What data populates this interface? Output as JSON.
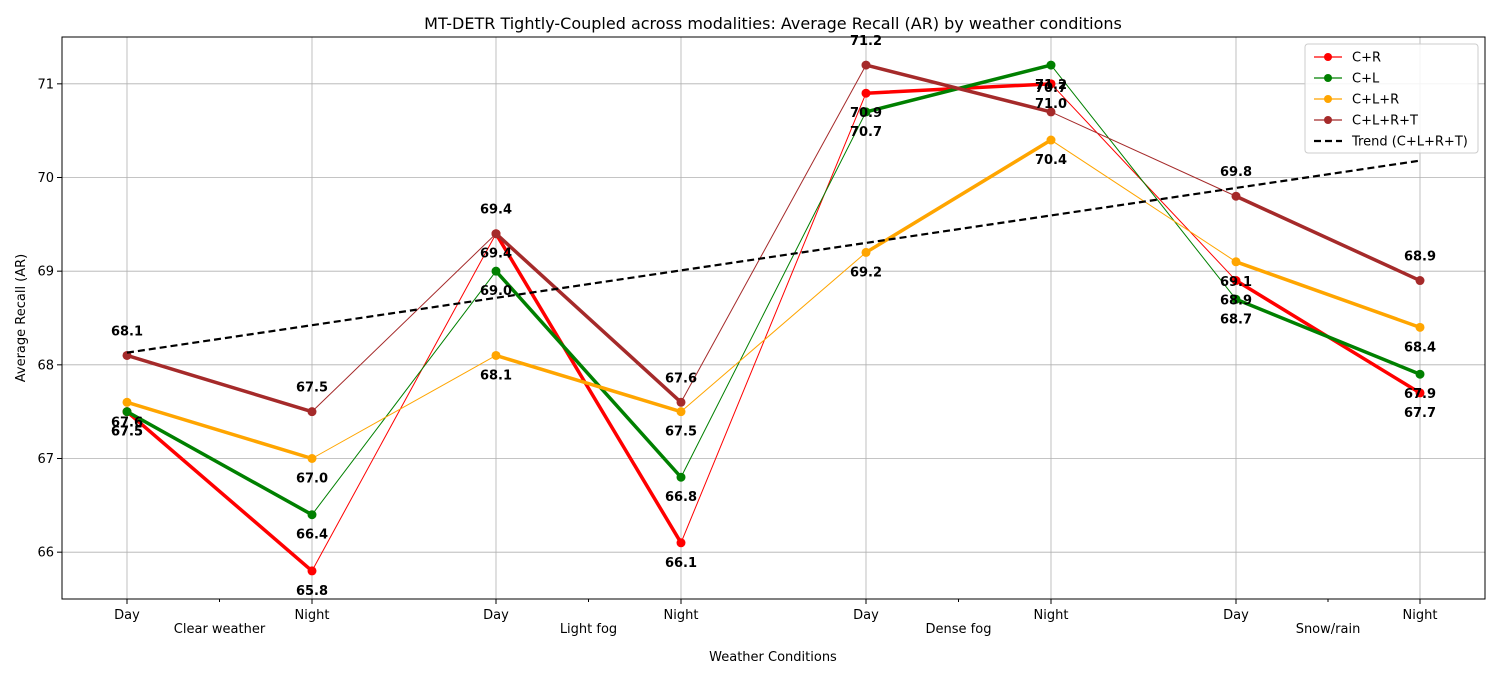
{
  "chart_data": {
    "type": "line",
    "title": "MT-DETR Tightly-Coupled across modalities: Average Recall (AR) by weather conditions",
    "xlabel": "Weather Conditions",
    "ylabel": "Average Recall (AR)",
    "x": [
      "Day",
      "Night",
      "Day",
      "Night",
      "Day",
      "Night",
      "Day",
      "Night"
    ],
    "groups": [
      "Clear weather",
      "Light fog",
      "Dense fog",
      "Snow/rain"
    ],
    "yticks": [
      66,
      67,
      68,
      69,
      70,
      71
    ],
    "ylim": [
      65.5,
      71.5
    ],
    "grid": true,
    "legend_position": "top-right",
    "series": [
      {
        "name": "C+R",
        "color": "#ff0000",
        "values": [
          67.5,
          65.8,
          69.4,
          66.1,
          70.9,
          71.0,
          68.9,
          67.7
        ]
      },
      {
        "name": "C+L",
        "color": "#008000",
        "values": [
          67.5,
          66.4,
          69.0,
          66.8,
          70.7,
          71.2,
          68.7,
          67.9
        ]
      },
      {
        "name": "C+L+R",
        "color": "#ffa500",
        "values": [
          67.6,
          67.0,
          68.1,
          67.5,
          69.2,
          70.4,
          69.1,
          68.4
        ]
      },
      {
        "name": "C+L+R+T",
        "color": "#a52a2a",
        "values": [
          68.1,
          67.5,
          69.4,
          67.6,
          71.2,
          70.7,
          69.8,
          68.9
        ]
      }
    ],
    "trend": {
      "name": "Trend (C+L+R+T)",
      "color": "#000000",
      "start": 68.13,
      "end": 70.18
    }
  }
}
